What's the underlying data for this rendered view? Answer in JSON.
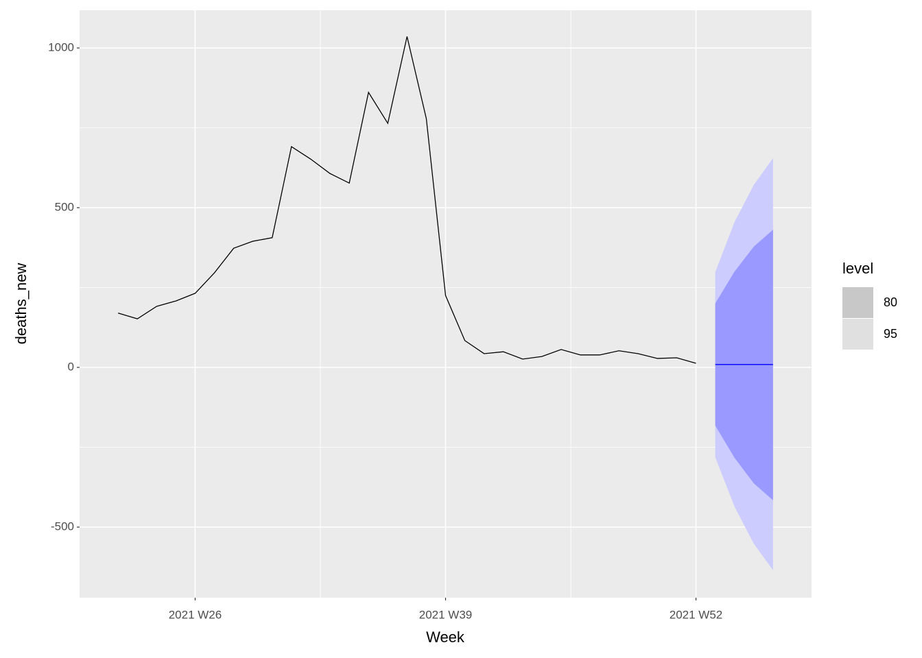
{
  "chart_data": {
    "type": "line",
    "x_label": "Week",
    "y_label": "deaths_new",
    "legend_title": "level",
    "x": [
      "2021 W22",
      "2021 W23",
      "2021 W24",
      "2021 W25",
      "2021 W26",
      "2021 W27",
      "2021 W28",
      "2021 W29",
      "2021 W30",
      "2021 W31",
      "2021 W32",
      "2021 W33",
      "2021 W34",
      "2021 W35",
      "2021 W36",
      "2021 W37",
      "2021 W38",
      "2021 W39",
      "2021 W40",
      "2021 W41",
      "2021 W42",
      "2021 W43",
      "2021 W44",
      "2021 W45",
      "2021 W46",
      "2021 W47",
      "2021 W48",
      "2021 W49",
      "2021 W50",
      "2021 W51",
      "2021 W52"
    ],
    "values": [
      170,
      152,
      191,
      208,
      232,
      296,
      373,
      395,
      406,
      691,
      652,
      607,
      577,
      861,
      764,
      1036,
      779,
      225,
      84,
      43,
      49,
      26,
      34,
      56,
      39,
      39,
      52,
      43,
      28,
      30,
      13
    ],
    "color": "#000000",
    "forecast": {
      "x": [
        "2022 W01",
        "2022 W02",
        "2022 W03",
        "2022 W04"
      ],
      "mean": [
        9,
        9,
        9,
        9
      ],
      "color": "#0000ff",
      "intervals": [
        {
          "name": "95",
          "color": "#ccccff",
          "key_color": "#e0e0e0",
          "lower": [
            -281,
            -436,
            -552,
            -635
          ],
          "upper": [
            298,
            455,
            571,
            655
          ]
        },
        {
          "name": "80",
          "color": "#9999ff",
          "key_color": "#c8c8c8",
          "lower": [
            -182,
            -283,
            -363,
            -416
          ],
          "upper": [
            200,
            300,
            378,
            431
          ]
        }
      ]
    },
    "xlim": [
      "2021 W20",
      "2022 W06"
    ],
    "xticks": [
      "2021 W26",
      "2021 W39",
      "2021 W52"
    ],
    "ylim": [
      -721,
      1118
    ],
    "yticks": [
      -500,
      0,
      500,
      1000
    ],
    "grid": true
  }
}
